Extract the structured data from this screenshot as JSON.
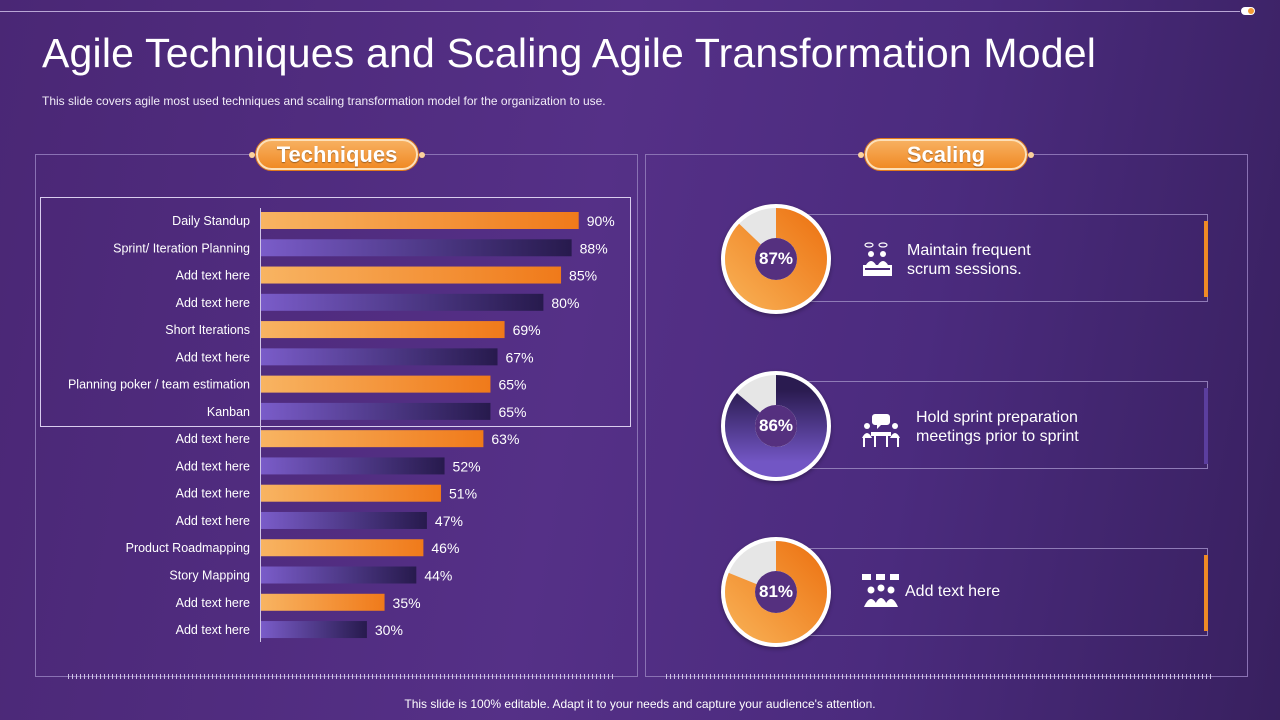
{
  "slide": {
    "title": "Agile Techniques and Scaling Agile Transformation Model",
    "subtitle": "This slide covers agile most used techniques and scaling transformation  model for the organization to use.",
    "footer": "This slide is 100% editable. Adapt it to your needs and capture your audience's attention."
  },
  "techniques": {
    "header": "Techniques"
  },
  "scaling": {
    "header": "Scaling",
    "items": [
      {
        "percent": 87,
        "label": "87%",
        "text_line1": "Maintain frequent",
        "text_line2": "scrum sessions.",
        "icon": "meeting-icon",
        "style": "orange"
      },
      {
        "percent": 86,
        "label": "86%",
        "text_line1": "Hold sprint preparation",
        "text_line2": "meetings prior to sprint",
        "icon": "discussion-icon",
        "style": "purple"
      },
      {
        "percent": 81,
        "label": "81%",
        "text_line1": "Add text here",
        "text_line2": "",
        "icon": "team-icon",
        "style": "orange"
      }
    ]
  },
  "colors": {
    "orange_start": "#f8b462",
    "orange_end": "#f07a1a",
    "purple_start": "#7a5cc9",
    "purple_end": "#271a4d",
    "donut_track": "#e6e6e6"
  },
  "chart_data": {
    "type": "bar",
    "orientation": "horizontal",
    "title": "Techniques",
    "categories": [
      "Daily Standup",
      "Sprint/ Iteration Planning",
      "Add text here",
      "Add text here",
      "Short Iterations",
      "Add text here",
      "Planning poker / team estimation",
      "Kanban",
      "Add text here",
      "Add text here",
      "Add text here",
      "Add text here",
      "Product Roadmapping",
      "Story Mapping",
      "Add text here",
      "Add text here"
    ],
    "values": [
      90,
      88,
      85,
      80,
      69,
      67,
      65,
      65,
      63,
      52,
      51,
      47,
      46,
      44,
      35,
      30
    ],
    "value_labels": [
      "90%",
      "88%",
      "85%",
      "80%",
      "69%",
      "67%",
      "65%",
      "65%",
      "63%",
      "52%",
      "51%",
      "47%",
      "46%",
      "44%",
      "35%",
      "30%"
    ],
    "unit": "%",
    "xlim": [
      0,
      100
    ],
    "highlighted_rows": 8,
    "bar_colors": "alternating orange / purple gradient"
  }
}
